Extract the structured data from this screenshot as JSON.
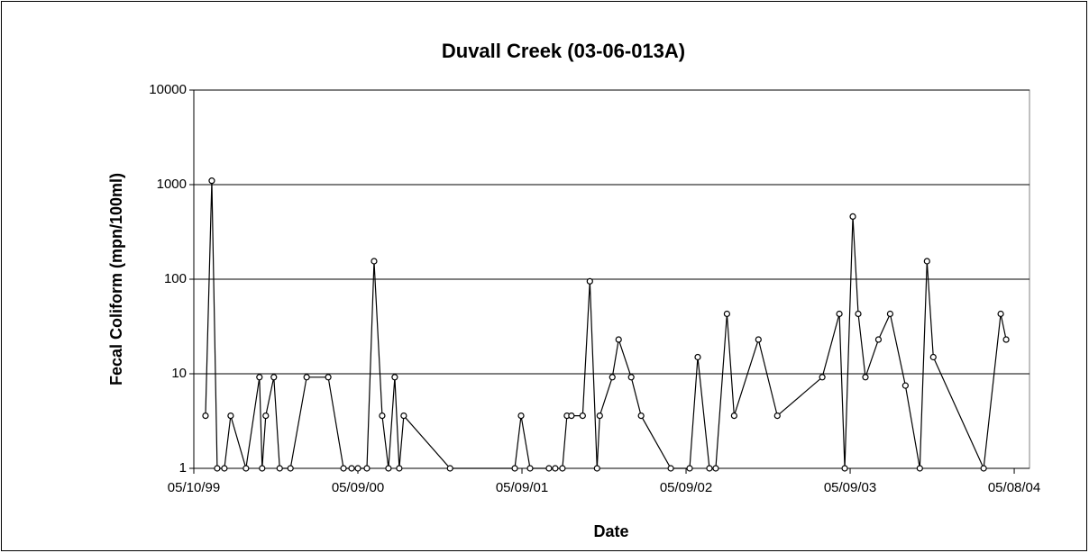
{
  "chart_data": {
    "type": "line",
    "title": "Duvall Creek (03-06-013A)",
    "x_label": "Date",
    "y_label": "Fecal Coliform (mpn/100ml)",
    "color": "#000000",
    "ylog": true,
    "grid": true,
    "ylim": [
      1,
      10000
    ],
    "yticks": [
      1,
      10,
      100,
      1000,
      10000
    ],
    "xlim": [
      "1999-05-10",
      "2004-06-11"
    ],
    "xticks": [
      {
        "value": "1999-05-10",
        "label": "05/10/99"
      },
      {
        "value": "2000-05-09",
        "label": "05/09/00"
      },
      {
        "value": "2001-05-09",
        "label": "05/09/01"
      },
      {
        "value": "2002-05-09",
        "label": "05/09/02"
      },
      {
        "value": "2003-05-09",
        "label": "05/09/03"
      },
      {
        "value": "2004-05-08",
        "label": "05/08/04"
      }
    ],
    "x": [
      "1999-06-05",
      "1999-06-19",
      "1999-07-01",
      "1999-07-17",
      "1999-07-31",
      "1999-09-03",
      "1999-10-03",
      "1999-10-09",
      "1999-10-17",
      "1999-11-04",
      "1999-11-17",
      "1999-12-11",
      "2000-01-16",
      "2000-03-04",
      "2000-04-07",
      "2000-04-25",
      "2000-05-09",
      "2000-05-29",
      "2000-06-14",
      "2000-07-02",
      "2000-07-16",
      "2000-07-30",
      "2000-08-09",
      "2000-08-19",
      "2000-11-30",
      "2001-04-23",
      "2001-05-07",
      "2001-05-27",
      "2001-07-08",
      "2001-07-22",
      "2001-08-07",
      "2001-08-17",
      "2001-08-27",
      "2001-09-21",
      "2001-10-07",
      "2001-10-23",
      "2001-10-29",
      "2001-11-26",
      "2001-12-10",
      "2002-01-07",
      "2002-01-29",
      "2002-04-05",
      "2002-05-17",
      "2002-06-04",
      "2002-06-30",
      "2002-07-14",
      "2002-08-08",
      "2002-08-24",
      "2002-10-17",
      "2002-11-28",
      "2003-03-08",
      "2003-04-15",
      "2003-04-27",
      "2003-05-15",
      "2003-05-27",
      "2003-06-12",
      "2003-07-11",
      "2003-08-06",
      "2003-09-09",
      "2003-10-11",
      "2003-10-27",
      "2003-11-10",
      "2004-03-01",
      "2004-04-08",
      "2004-04-20"
    ],
    "values": [
      3.6,
      1100,
      1,
      1,
      3.6,
      1,
      9.2,
      1,
      3.6,
      9.2,
      1,
      1,
      9.2,
      9.2,
      1,
      1,
      1,
      1,
      155,
      3.6,
      1,
      9.2,
      1,
      3.6,
      1,
      1,
      3.6,
      1,
      1,
      1,
      1,
      3.6,
      3.6,
      3.6,
      95,
      1,
      3.6,
      9.2,
      23,
      9.2,
      3.6,
      1,
      1,
      15,
      1,
      1,
      43,
      3.6,
      23,
      3.6,
      9.2,
      43,
      1,
      460,
      43,
      9.2,
      23,
      43,
      7.5,
      1,
      155,
      15,
      1,
      43,
      23
    ]
  }
}
